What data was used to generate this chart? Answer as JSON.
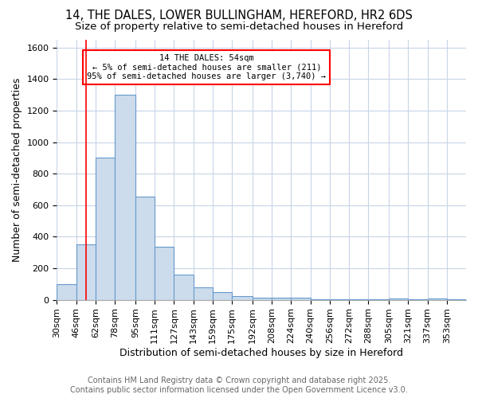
{
  "title": "14, THE DALES, LOWER BULLINGHAM, HEREFORD, HR2 6DS",
  "subtitle": "Size of property relative to semi-detached houses in Hereford",
  "xlabel": "Distribution of semi-detached houses by size in Hereford",
  "ylabel": "Number of semi-detached properties",
  "bar_color": "#ccdcec",
  "bar_edge_color": "#6699cc",
  "background_color": "#ffffff",
  "plot_bg_color": "#ffffff",
  "grid_color": "#c8d4e8",
  "annotation_title": "14 THE DALES: 54sqm",
  "annotation_line1": "← 5% of semi-detached houses are smaller (211)",
  "annotation_line2": "95% of semi-detached houses are larger (3,740) →",
  "annotation_box_color": "white",
  "annotation_border_color": "red",
  "redline_x": 54,
  "categories": [
    "30sqm",
    "46sqm",
    "62sqm",
    "78sqm",
    "95sqm",
    "111sqm",
    "127sqm",
    "143sqm",
    "159sqm",
    "175sqm",
    "192sqm",
    "208sqm",
    "224sqm",
    "240sqm",
    "256sqm",
    "272sqm",
    "288sqm",
    "305sqm",
    "321sqm",
    "337sqm",
    "353sqm"
  ],
  "bin_edges": [
    30,
    46,
    62,
    78,
    95,
    111,
    127,
    143,
    159,
    175,
    192,
    208,
    224,
    240,
    256,
    272,
    288,
    305,
    321,
    337,
    353,
    369
  ],
  "values": [
    100,
    350,
    900,
    1300,
    655,
    335,
    160,
    80,
    47,
    25,
    15,
    12,
    15,
    5,
    2,
    2,
    2,
    10,
    2,
    10,
    2
  ],
  "ylim": [
    0,
    1650
  ],
  "yticks": [
    0,
    200,
    400,
    600,
    800,
    1000,
    1200,
    1400,
    1600
  ],
  "footnote1": "Contains HM Land Registry data © Crown copyright and database right 2025.",
  "footnote2": "Contains public sector information licensed under the Open Government Licence v3.0.",
  "title_fontsize": 10.5,
  "subtitle_fontsize": 9.5,
  "axis_label_fontsize": 9,
  "tick_fontsize": 8,
  "footnote_fontsize": 7
}
